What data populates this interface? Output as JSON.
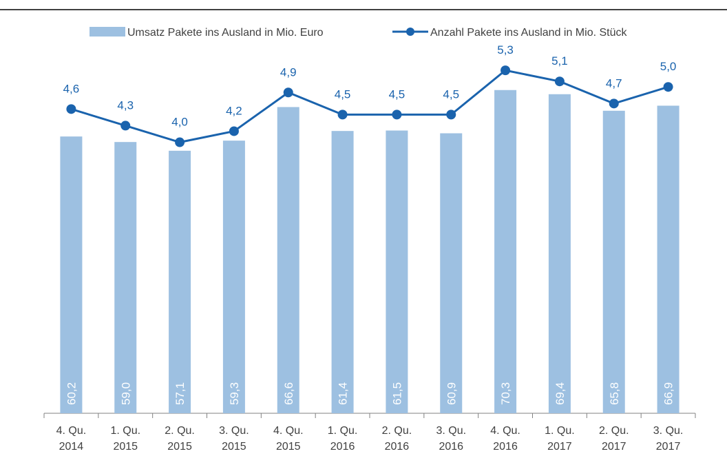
{
  "chart_data": {
    "type": "bar_line",
    "categories": [
      [
        "4. Qu.",
        "2014"
      ],
      [
        "1. Qu.",
        "2015"
      ],
      [
        "2. Qu.",
        "2015"
      ],
      [
        "3. Qu.",
        "2015"
      ],
      [
        "4. Qu.",
        "2015"
      ],
      [
        "1. Qu.",
        "2016"
      ],
      [
        "2. Qu.",
        "2016"
      ],
      [
        "3. Qu.",
        "2016"
      ],
      [
        "4. Qu.",
        "2016"
      ],
      [
        "1. Qu.",
        "2017"
      ],
      [
        "2. Qu.",
        "2017"
      ],
      [
        "3. Qu.",
        "2017"
      ]
    ],
    "series": [
      {
        "name": "Umsatz Pakete ins Ausland in Mio. Euro",
        "color": "#9dc0e1",
        "type": "bar",
        "values": [
          60.2,
          59.0,
          57.1,
          59.3,
          66.6,
          61.4,
          61.5,
          60.9,
          70.3,
          69.4,
          65.8,
          66.9
        ],
        "value_labels": [
          "60,2",
          "59,0",
          "57,1",
          "59,3",
          "66,6",
          "61,4",
          "61,5",
          "60,9",
          "70,3",
          "69,4",
          "65,8",
          "66,9"
        ]
      },
      {
        "name": "Anzahl Pakete ins Ausland in Mio. Stück",
        "color": "#1a63ad",
        "type": "line",
        "axis": "y2",
        "values": [
          4.6,
          4.3,
          4.0,
          4.2,
          4.9,
          4.5,
          4.5,
          4.5,
          5.3,
          5.1,
          4.7,
          5.0
        ],
        "value_labels": [
          "4,6",
          "4,3",
          "4,0",
          "4,2",
          "4,9",
          "4,5",
          "4,5",
          "4,5",
          "5,3",
          "5,1",
          "4,7",
          "5,0"
        ]
      }
    ],
    "ylim": [
      0,
      80
    ],
    "y2lim": [
      -0.9,
      5.75
    ],
    "legend": "top"
  }
}
